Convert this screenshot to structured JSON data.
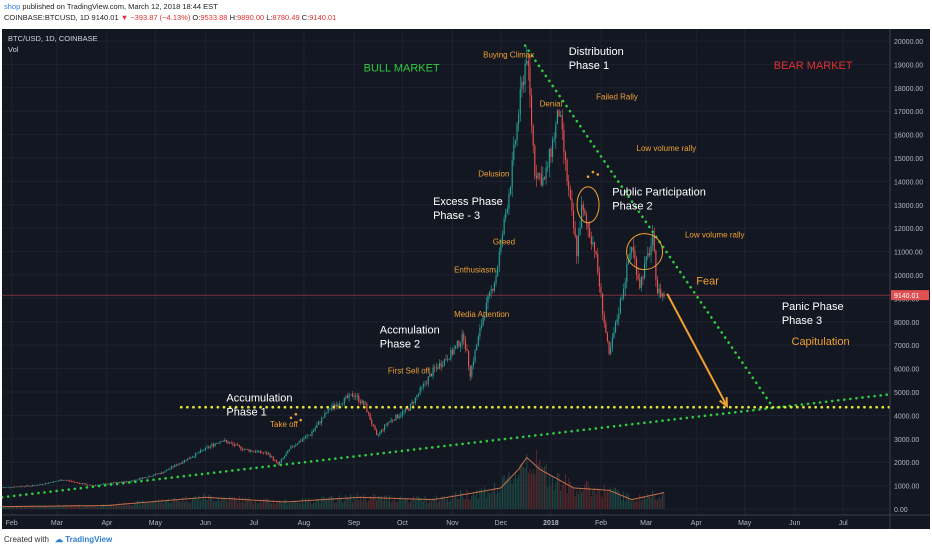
{
  "header": {
    "user": "shop",
    "published": "published on TradingView.com, March 12, 2018 18:44 EST",
    "symbol": "COINBASE:BTCUSD, 1D",
    "last": "9140.01",
    "change": "−393.87 (−4.13%)",
    "open_label": "O:",
    "open": "9533.88",
    "high_label": "H:",
    "high": "9890.00",
    "low_label": "L:",
    "low": "8780.49",
    "close_label": "C:",
    "close": "9140.01"
  },
  "legend": {
    "title": "BTC/USD, 1D, COINBASE",
    "vol": "Vol"
  },
  "footer": {
    "created_with": "Created with",
    "brand": "TradingView"
  },
  "colors": {
    "bg": "#131722",
    "up": "#26a69a",
    "down": "#ef5350",
    "green_line": "#2ecc40",
    "yellow_line": "#e8e832",
    "orange": "#f0a030",
    "price_label_bg": "#e05050"
  },
  "chart_data": {
    "type": "candlestick",
    "ylim": [
      0,
      20000
    ],
    "y_ticks": [
      0,
      1000,
      2000,
      3000,
      4000,
      5000,
      6000,
      7000,
      8000,
      9000,
      10000,
      11000,
      12000,
      13000,
      14000,
      15000,
      16000,
      17000,
      18000,
      19000,
      20000
    ],
    "y_tick_labels": [
      "0.00",
      "1000.00",
      "2000.00",
      "3000.00",
      "4000.00",
      "5000.00",
      "6000.00",
      "7000.00",
      "8000.00",
      "9000.00",
      "10000.00",
      "11000.00",
      "12000.00",
      "13000.00",
      "14000.00",
      "15000.00",
      "16000.00",
      "17000.00",
      "18000.00",
      "19000.00",
      "20000.00"
    ],
    "x_labels": [
      "Feb",
      "Mar",
      "Apr",
      "May",
      "Jun",
      "Jul",
      "Aug",
      "Sep",
      "Oct",
      "Nov",
      "Dec",
      "2018",
      "Feb",
      "Mar",
      "Apr",
      "May",
      "Jun",
      "Jul"
    ],
    "x_range": [
      "2017-01-26",
      "2018-07-30"
    ],
    "last_price_label": "9140.01",
    "price_points": [
      [
        "2017-01-26",
        920
      ],
      [
        "2017-02-15",
        1000
      ],
      [
        "2017-03-05",
        1250
      ],
      [
        "2017-03-22",
        1000
      ],
      [
        "2017-04-15",
        1180
      ],
      [
        "2017-05-05",
        1550
      ],
      [
        "2017-05-25",
        2300
      ],
      [
        "2017-06-11",
        2950
      ],
      [
        "2017-06-25",
        2550
      ],
      [
        "2017-07-10",
        2350
      ],
      [
        "2017-07-16",
        1900
      ],
      [
        "2017-07-25",
        2700
      ],
      [
        "2017-08-05",
        3200
      ],
      [
        "2017-08-17",
        4300
      ],
      [
        "2017-09-01",
        4900
      ],
      [
        "2017-09-08",
        4400
      ],
      [
        "2017-09-15",
        3100
      ],
      [
        "2017-09-22",
        3700
      ],
      [
        "2017-10-05",
        4300
      ],
      [
        "2017-10-20",
        5900
      ],
      [
        "2017-11-01",
        6700
      ],
      [
        "2017-11-08",
        7400
      ],
      [
        "2017-11-12",
        5800
      ],
      [
        "2017-11-20",
        8200
      ],
      [
        "2017-11-28",
        10000
      ],
      [
        "2017-12-07",
        14000
      ],
      [
        "2017-12-12",
        17000
      ],
      [
        "2017-12-17",
        19500
      ],
      [
        "2017-12-22",
        14500
      ],
      [
        "2017-12-28",
        14000
      ],
      [
        "2018-01-06",
        17000
      ],
      [
        "2018-01-12",
        13500
      ],
      [
        "2018-01-17",
        11000
      ],
      [
        "2018-01-20",
        12800
      ],
      [
        "2018-01-28",
        11200
      ],
      [
        "2018-02-02",
        8500
      ],
      [
        "2018-02-06",
        6500
      ],
      [
        "2018-02-12",
        8500
      ],
      [
        "2018-02-20",
        11300
      ],
      [
        "2018-02-25",
        9600
      ],
      [
        "2018-03-05",
        11500
      ],
      [
        "2018-03-08",
        9300
      ],
      [
        "2018-03-12",
        9140
      ]
    ],
    "volume_points": [
      [
        "2017-01-26",
        100
      ],
      [
        "2017-04-01",
        150
      ],
      [
        "2017-06-01",
        500
      ],
      [
        "2017-07-20",
        300
      ],
      [
        "2017-09-05",
        500
      ],
      [
        "2017-10-20",
        400
      ],
      [
        "2017-11-15",
        700
      ],
      [
        "2017-12-01",
        900
      ],
      [
        "2017-12-12",
        1700
      ],
      [
        "2017-12-17",
        2200
      ],
      [
        "2017-12-25",
        1700
      ],
      [
        "2018-01-15",
        900
      ],
      [
        "2018-02-06",
        800
      ],
      [
        "2018-02-20",
        400
      ],
      [
        "2018-03-12",
        700
      ]
    ],
    "trendlines": [
      {
        "color": "green",
        "from": [
          "2017-01-26",
          500
        ],
        "to": [
          "2018-07-30",
          4900
        ]
      },
      {
        "color": "yellow",
        "from": [
          "2017-05-17",
          4350
        ],
        "to": [
          "2018-07-30",
          4350
        ]
      },
      {
        "color": "green",
        "from": [
          "2017-12-16",
          19800
        ],
        "to": [
          "2018-05-18",
          4400
        ]
      }
    ],
    "arrow": {
      "from": [
        "2018-03-14",
        9200
      ],
      "to": [
        "2018-04-20",
        4400
      ]
    },
    "circles": [
      {
        "center": [
          "2018-01-24",
          13000
        ],
        "rx": 11,
        "ry": 18
      },
      {
        "center": [
          "2018-02-28",
          11000
        ],
        "rx": 18,
        "ry": 18
      }
    ],
    "orange_dots": [
      [
        "2017-07-24",
        3900
      ],
      [
        "2017-07-27",
        4050
      ],
      [
        "2017-07-30",
        3800
      ],
      [
        "2018-01-24",
        14200
      ],
      [
        "2018-01-27",
        14400
      ],
      [
        "2018-01-30",
        14300
      ]
    ],
    "annotations": [
      {
        "text": "BULL MARKET",
        "color": "#2ecc40",
        "size": 11,
        "at": [
          "2017-09-07",
          18700
        ]
      },
      {
        "text": "BEAR MARKET",
        "color": "#e03030",
        "size": 11,
        "at": [
          "2018-05-19",
          18800
        ]
      },
      {
        "text": "Buying Climax",
        "color": "#f0a030",
        "size": 8,
        "at": [
          "2017-11-20",
          19300
        ]
      },
      {
        "text": "Distribution",
        "color": "#ffffff",
        "size": 11,
        "at": [
          "2018-01-12",
          19400
        ]
      },
      {
        "text": "Phase 1",
        "color": "#ffffff",
        "size": 11,
        "at": [
          "2018-01-12",
          18800
        ]
      },
      {
        "text": "Failed Rally",
        "color": "#f0a030",
        "size": 8,
        "at": [
          "2018-01-29",
          17500
        ]
      },
      {
        "text": "Denial",
        "color": "#f0a030",
        "size": 8,
        "at": [
          "2017-12-25",
          17200
        ]
      },
      {
        "text": "Low volume rally",
        "color": "#f0a030",
        "size": 8,
        "at": [
          "2018-02-23",
          15300
        ]
      },
      {
        "text": "Delusion",
        "color": "#f0a030",
        "size": 8,
        "at": [
          "2017-11-17",
          14200
        ]
      },
      {
        "text": "Excess Phase",
        "color": "#ffffff",
        "size": 11,
        "at": [
          "2017-10-20",
          13000
        ]
      },
      {
        "text": "Phase - 3",
        "color": "#ffffff",
        "size": 11,
        "at": [
          "2017-10-20",
          12400
        ]
      },
      {
        "text": "Public Participation",
        "color": "#ffffff",
        "size": 11,
        "at": [
          "2018-02-08",
          13400
        ]
      },
      {
        "text": "Phase 2",
        "color": "#ffffff",
        "size": 11,
        "at": [
          "2018-02-08",
          12800
        ]
      },
      {
        "text": "Low volume rally",
        "color": "#f0a030",
        "size": 8,
        "at": [
          "2018-03-25",
          11600
        ]
      },
      {
        "text": "Greed",
        "color": "#f0a030",
        "size": 8,
        "at": [
          "2017-11-26",
          11300
        ]
      },
      {
        "text": "Enthusiasm",
        "color": "#f0a030",
        "size": 8,
        "at": [
          "2017-11-02",
          10100
        ]
      },
      {
        "text": "Fear",
        "color": "#f0a030",
        "size": 11,
        "at": [
          "2018-04-01",
          9600
        ]
      },
      {
        "text": "Media Attention",
        "color": "#f0a030",
        "size": 8,
        "at": [
          "2017-11-02",
          8200
        ]
      },
      {
        "text": "Panic Phase",
        "color": "#ffffff",
        "size": 11,
        "at": [
          "2018-05-24",
          8500
        ]
      },
      {
        "text": "Phase 3",
        "color": "#ffffff",
        "size": 11,
        "at": [
          "2018-05-24",
          7900
        ]
      },
      {
        "text": "Accmulation",
        "color": "#ffffff",
        "size": 11,
        "at": [
          "2017-09-17",
          7500
        ]
      },
      {
        "text": "Phase 2",
        "color": "#ffffff",
        "size": 11,
        "at": [
          "2017-09-17",
          6900
        ]
      },
      {
        "text": "Capitulation",
        "color": "#f0a030",
        "size": 11,
        "at": [
          "2018-05-30",
          7000
        ]
      },
      {
        "text": "First Sell off",
        "color": "#f0a030",
        "size": 8,
        "at": [
          "2017-09-22",
          5800
        ]
      },
      {
        "text": "Accumulation",
        "color": "#ffffff",
        "size": 11,
        "at": [
          "2017-06-14",
          4600
        ]
      },
      {
        "text": "Phase 1",
        "color": "#ffffff",
        "size": 11,
        "at": [
          "2017-06-14",
          4000
        ]
      },
      {
        "text": "Take off",
        "color": "#f0a030",
        "size": 8,
        "at": [
          "2017-07-11",
          3500
        ]
      }
    ]
  }
}
